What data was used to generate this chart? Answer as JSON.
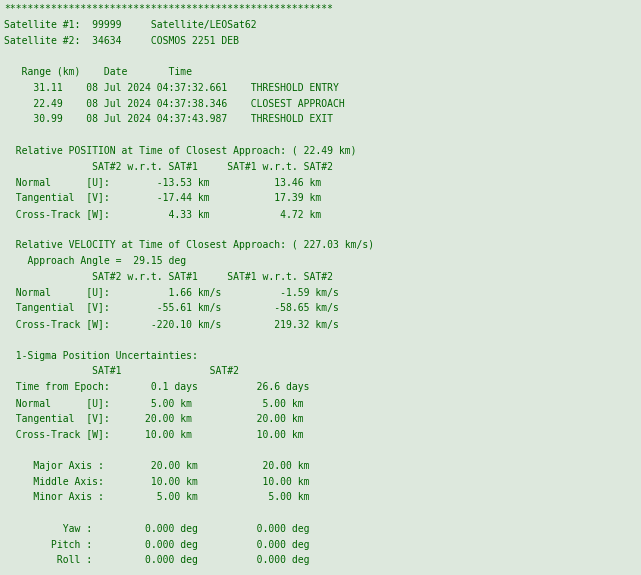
{
  "bg_color": "#dde8dd",
  "text_color": "#006400",
  "font_family": "monospace",
  "font_size": 7.0,
  "lines": [
    "********************************************************",
    "Satellite #1:  99999     Satellite/LEOSat62",
    "Satellite #2:  34634     COSMOS 2251 DEB",
    "",
    "   Range (km)    Date       Time",
    "     31.11    08 Jul 2024 04:37:32.661    THRESHOLD ENTRY",
    "     22.49    08 Jul 2024 04:37:38.346    CLOSEST APPROACH",
    "     30.99    08 Jul 2024 04:37:43.987    THRESHOLD EXIT",
    "",
    "  Relative POSITION at Time of Closest Approach: ( 22.49 km)",
    "               SAT#2 w.r.t. SAT#1     SAT#1 w.r.t. SAT#2",
    "  Normal      [U]:        -13.53 km           13.46 km",
    "  Tangential  [V]:        -17.44 km           17.39 km",
    "  Cross-Track [W]:          4.33 km            4.72 km",
    "",
    "  Relative VELOCITY at Time of Closest Approach: ( 227.03 km/s)",
    "    Approach Angle =  29.15 deg",
    "               SAT#2 w.r.t. SAT#1     SAT#1 w.r.t. SAT#2",
    "  Normal      [U]:          1.66 km/s          -1.59 km/s",
    "  Tangential  [V]:        -55.61 km/s         -58.65 km/s",
    "  Cross-Track [W]:       -220.10 km/s         219.32 km/s",
    "",
    "  1-Sigma Position Uncertainties:",
    "               SAT#1               SAT#2",
    "  Time from Epoch:       0.1 days          26.6 days",
    "  Normal      [U]:       5.00 km            5.00 km",
    "  Tangential  [V]:      20.00 km           20.00 km",
    "  Cross-Track [W]:      10.00 km           10.00 km",
    "",
    "     Major Axis :        20.00 km           20.00 km",
    "     Middle Axis:        10.00 km           10.00 km",
    "     Minor Axis :         5.00 km            5.00 km",
    "",
    "          Yaw :         0.000 deg          0.000 deg",
    "        Pitch :         0.000 deg          0.000 deg",
    "         Roll :         0.000 deg          0.000 deg"
  ]
}
